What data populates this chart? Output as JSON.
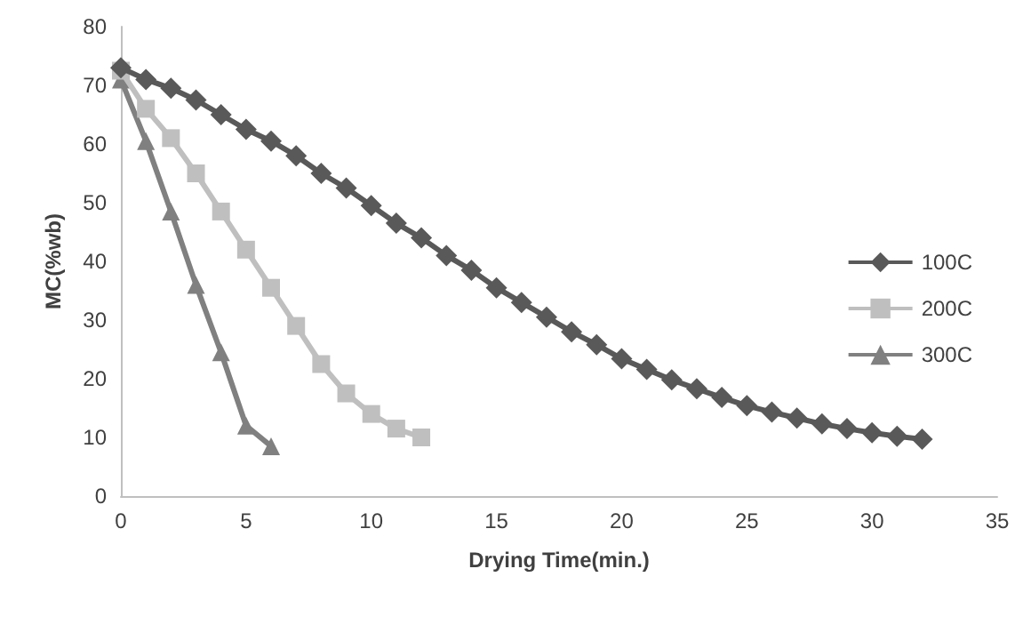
{
  "chart_data": {
    "type": "line",
    "xlabel": "Drying Time(min.)",
    "ylabel": "MC(%wb)",
    "xlim": [
      0,
      35
    ],
    "xticks": [
      0,
      5,
      10,
      15,
      20,
      25,
      30,
      35
    ],
    "ylim": [
      0,
      80
    ],
    "yticks": [
      0,
      10,
      20,
      30,
      40,
      50,
      60,
      70,
      80
    ],
    "grid": false,
    "legend": "right",
    "series": [
      {
        "name": "100C",
        "color": "#595959",
        "marker": "diamond",
        "x": [
          0,
          1,
          2,
          3,
          4,
          5,
          6,
          7,
          8,
          9,
          10,
          11,
          12,
          13,
          14,
          15,
          16,
          17,
          18,
          19,
          20,
          21,
          22,
          23,
          24,
          25,
          26,
          27,
          28,
          29,
          30,
          31,
          32
        ],
        "values": [
          73,
          71,
          69.5,
          67.5,
          65,
          62.5,
          60.5,
          58,
          55,
          52.5,
          49.5,
          46.5,
          44,
          41,
          38.5,
          35.5,
          33,
          30.5,
          28,
          25.8,
          23.4,
          21.6,
          19.8,
          18.3,
          16.8,
          15.4,
          14.3,
          13.3,
          12.3,
          11.5,
          10.8,
          10.2,
          9.7
        ]
      },
      {
        "name": "200C",
        "color": "#bfbfbf",
        "marker": "square",
        "x": [
          0,
          1,
          2,
          3,
          4,
          5,
          6,
          7,
          8,
          9,
          10,
          11,
          12
        ],
        "values": [
          72.5,
          66,
          61,
          55,
          48.5,
          42,
          35.5,
          29,
          22.5,
          17.5,
          14,
          11.5,
          10
        ]
      },
      {
        "name": "300C",
        "color": "#808080",
        "marker": "triangle",
        "x": [
          0,
          1,
          2,
          3,
          4,
          5,
          6
        ],
        "values": [
          71,
          60.5,
          48.5,
          36,
          24.5,
          12,
          8.5
        ]
      }
    ]
  }
}
